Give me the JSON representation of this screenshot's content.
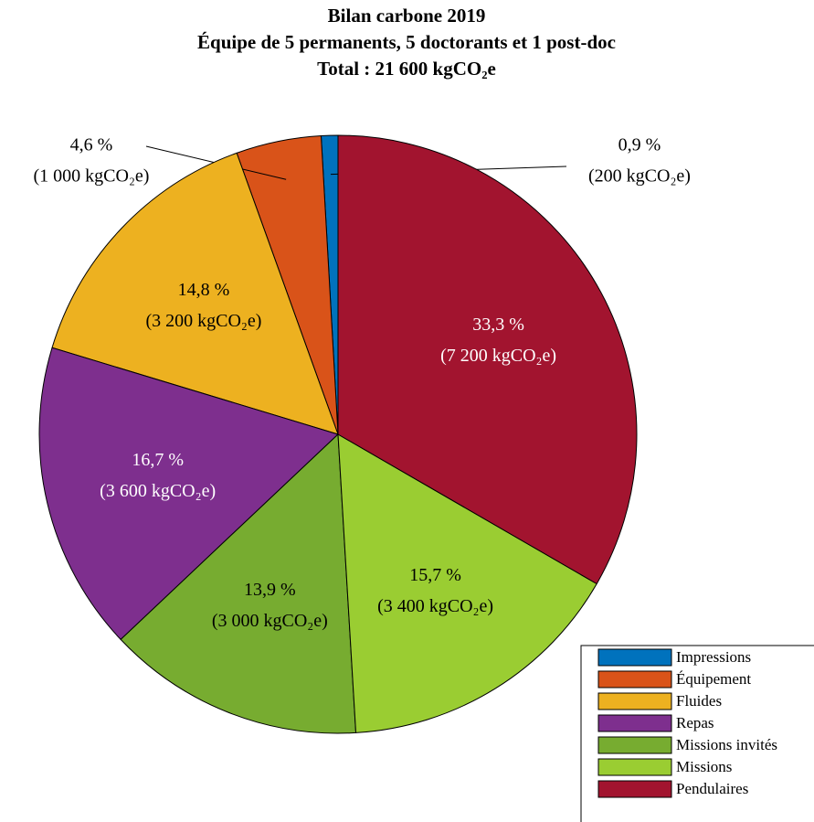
{
  "chart_data": {
    "type": "pie",
    "title": "Bilan carbone 2019",
    "subtitle": [
      "Équipe de 5 permanents, 5 doctorants et 1 post-doc",
      "Total : 21 600 kgCO₂e"
    ],
    "categories": [
      "Impressions",
      "Équipement",
      "Fluides",
      "Repas",
      "Missions invités",
      "Missions",
      "Pendulaires"
    ],
    "values": [
      0.9,
      4.6,
      14.8,
      16.7,
      13.9,
      15.7,
      33.3
    ],
    "value_labels": [
      "0,9 %",
      "4,6 %",
      "14,8 %",
      "16,7 %",
      "13,9 %",
      "15,7 %",
      "33,3 %"
    ],
    "amount_labels": [
      "(200 kgCO₂e)",
      "(1 000 kgCO₂e)",
      "(3 200 kgCO₂e)",
      "(3 600 kgCO₂e)",
      "(3 000 kgCO₂e)",
      "(3 400 kgCO₂e)",
      "(7 200 kgCO₂e)"
    ],
    "colors": [
      "#0072bd",
      "#d95319",
      "#edb120",
      "#7e2f8e",
      "#77ac30",
      "#9acd32",
      "#a2142f"
    ],
    "label_text_colors": [
      "#000000",
      "#000000",
      "#000000",
      "#ffffff",
      "#000000",
      "#000000",
      "#ffffff"
    ],
    "legend": "lower right"
  }
}
